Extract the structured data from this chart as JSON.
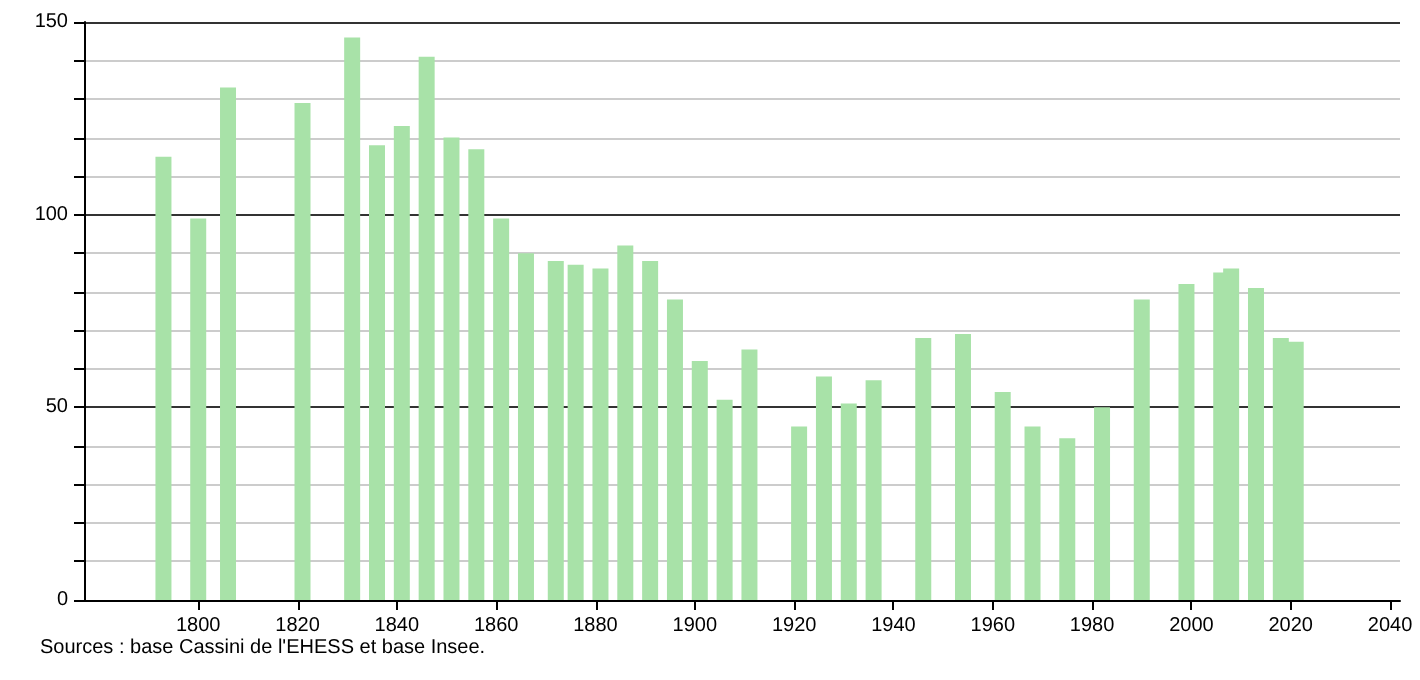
{
  "chart_data": {
    "type": "bar",
    "x": [
      1793,
      1800,
      1806,
      1821,
      1831,
      1836,
      1841,
      1846,
      1851,
      1856,
      1861,
      1866,
      1872,
      1876,
      1881,
      1886,
      1891,
      1896,
      1901,
      1906,
      1911,
      1921,
      1926,
      1931,
      1936,
      1946,
      1954,
      1962,
      1968,
      1975,
      1982,
      1990,
      1999,
      2006,
      2008,
      2013,
      2018,
      2021
    ],
    "values": [
      115,
      99,
      133,
      129,
      146,
      118,
      123,
      141,
      120,
      117,
      99,
      90,
      88,
      87,
      86,
      92,
      88,
      78,
      62,
      52,
      65,
      45,
      58,
      51,
      57,
      68,
      69,
      54,
      45,
      42,
      50,
      78,
      82,
      85,
      86,
      81,
      68,
      67
    ],
    "color": "#a8e2a8",
    "xlim": [
      1777,
      2042
    ],
    "xticks": [
      1800,
      1820,
      1840,
      1860,
      1880,
      1900,
      1920,
      1940,
      1960,
      1980,
      2000,
      2020,
      2040
    ],
    "ylim": [
      0,
      150
    ],
    "yticks": [
      0,
      {
        "value": 10,
        "label": null
      },
      {
        "value": 20,
        "label": null
      },
      {
        "value": 30,
        "label": null
      },
      {
        "value": 40,
        "label": null
      },
      50,
      {
        "value": 60,
        "label": null
      },
      {
        "value": 70,
        "label": null
      },
      {
        "value": 80,
        "label": null
      },
      {
        "value": 90,
        "label": null
      },
      100,
      {
        "value": 110,
        "label": null
      },
      {
        "value": 120,
        "label": null
      },
      {
        "value": 130,
        "label": null
      },
      {
        "value": 140,
        "label": null
      },
      150
    ],
    "grid": "y",
    "annotations": [
      "Sources : base Cassini de l'EHESS et base Insee."
    ]
  }
}
